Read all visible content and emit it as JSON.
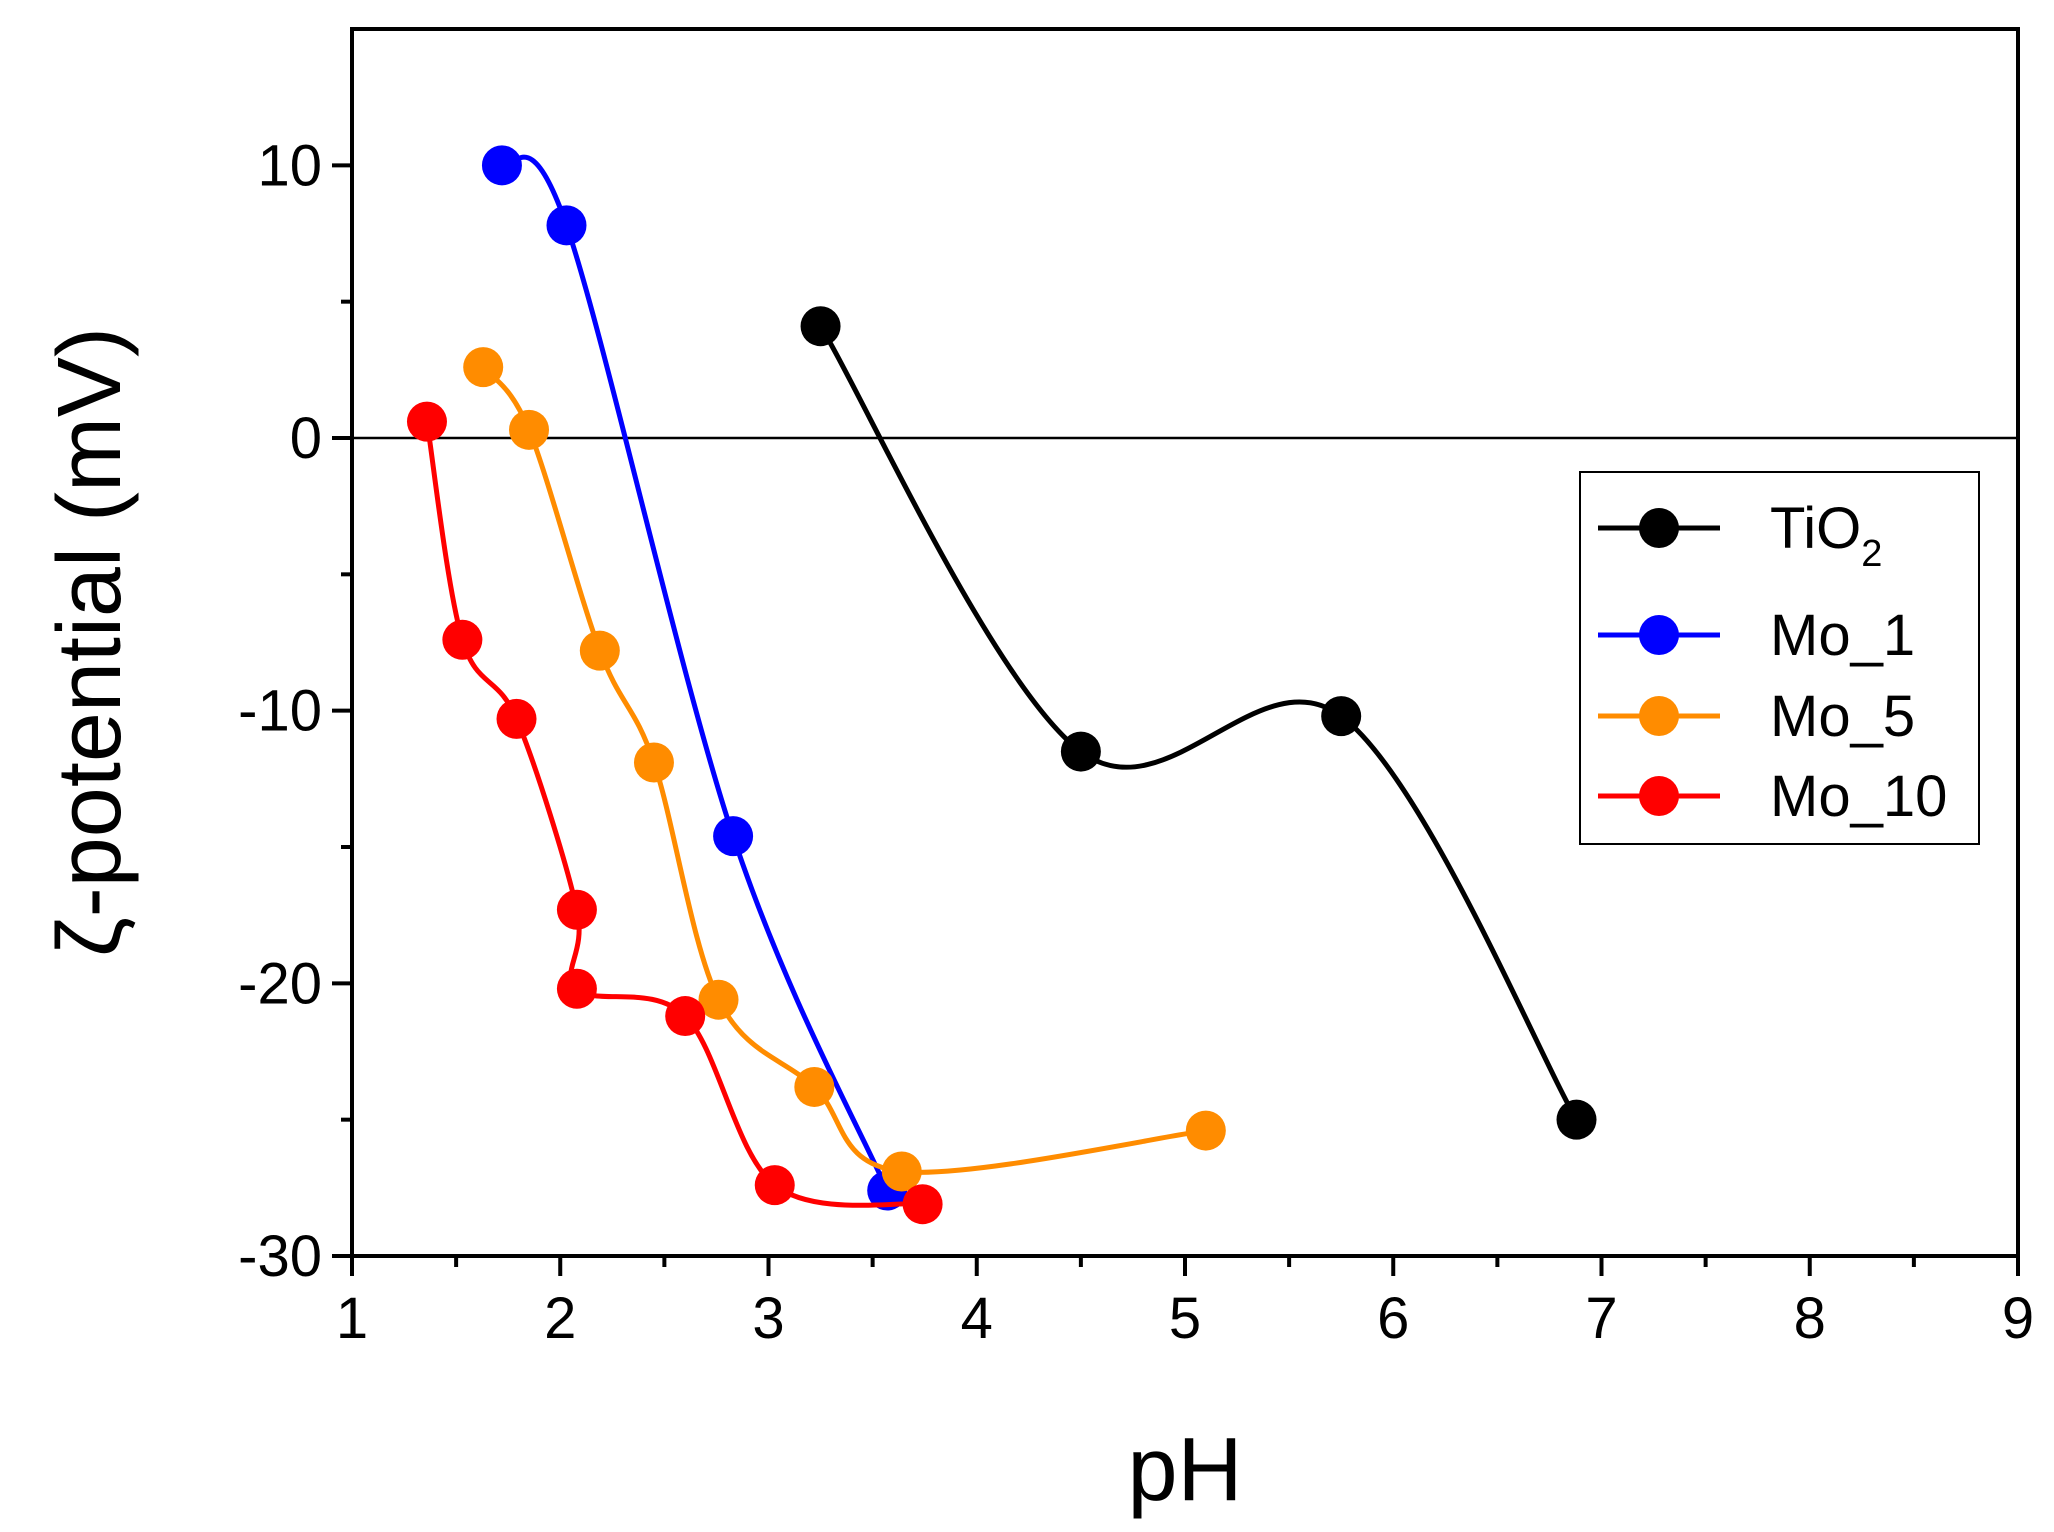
{
  "chart_data": {
    "type": "scatter",
    "title": "",
    "xlabel": "pH",
    "ylabel": "ζ-potential (mV)",
    "xlim": [
      1,
      9
    ],
    "ylim": [
      -30,
      15
    ],
    "xticks": [
      1,
      2,
      3,
      4,
      5,
      6,
      7,
      8,
      9
    ],
    "yticks": [
      -30,
      -20,
      -10,
      0,
      10
    ],
    "zero_line": 0,
    "legend_position": "right-middle",
    "series": [
      {
        "name": "TiO",
        "subscript": "2",
        "color": "#000000",
        "x": [
          3.25,
          4.5,
          5.75,
          6.88
        ],
        "y": [
          4.1,
          -11.5,
          -10.2,
          -25.0
        ]
      },
      {
        "name": "Mo_1",
        "color": "#0000ff",
        "x": [
          1.72,
          2.03,
          2.83,
          3.57
        ],
        "y": [
          10.0,
          7.8,
          -14.6,
          -27.6
        ]
      },
      {
        "name": "Mo_5",
        "color": "#ff8c00",
        "x": [
          1.63,
          1.85,
          2.19,
          2.45,
          2.76,
          3.22,
          3.64,
          5.1
        ],
        "y": [
          2.6,
          0.3,
          -7.8,
          -11.9,
          -20.6,
          -23.8,
          -26.9,
          -25.4
        ]
      },
      {
        "name": "Mo_10",
        "color": "#ff0000",
        "x": [
          1.36,
          1.53,
          1.79,
          2.08,
          2.08,
          2.6,
          3.03,
          3.74
        ],
        "y": [
          0.6,
          -7.4,
          -10.3,
          -17.3,
          -20.2,
          -21.2,
          -27.4,
          -28.1
        ]
      }
    ]
  }
}
